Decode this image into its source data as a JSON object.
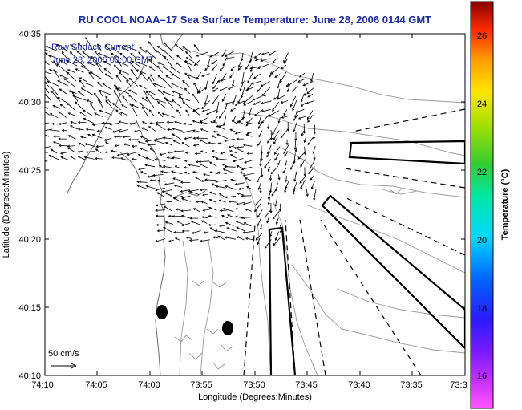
{
  "title": "RU COOL  NOAA–17  Sea Surface Temperature:  June 28, 2006 0144 GMT",
  "overlay": {
    "line1": "Raw Surface Current",
    "line2": "June 28, 2006 00:00 GMT"
  },
  "scale_label": "50 cm/s",
  "axes": {
    "xlabel": "Longitude (Degrees:Minutes)",
    "ylabel": "Latitude (Degrees:Minutes)",
    "x_ticks": [
      "74:10",
      "74:05",
      "74:00",
      "73:55",
      "73:50",
      "73:45",
      "73:40",
      "73:35",
      "73:3"
    ],
    "y_ticks": [
      "40:35",
      "40:30",
      "40:25",
      "40:20",
      "40:15",
      "40:10"
    ]
  },
  "colorbar": {
    "label": "Temperature (°C)",
    "ticks": [
      "26",
      "24",
      "22",
      "20",
      "18",
      "16"
    ]
  },
  "colors": {
    "title": "#1a2a9a",
    "overlay_text": "#1a2aa0",
    "land": "#ffffff",
    "contour": "#9a9a9a",
    "frame": "#000000"
  }
}
